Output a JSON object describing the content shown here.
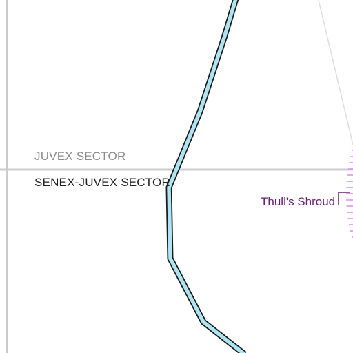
{
  "map": {
    "sectors": [
      {
        "id": "juvex",
        "label": "JUVEX SECTOR",
        "color": "#8c8c8c"
      },
      {
        "id": "senex-juvex",
        "label": "SENEX-JUVEX SECTOR",
        "color": "#222222"
      }
    ],
    "features": [
      {
        "id": "thulls-shroud",
        "label": "Thull's Shroud",
        "color": "#6a1b7a"
      }
    ],
    "colors": {
      "background": "#ffffff",
      "grid_line": "#cccccc",
      "route_fill": "#aee4f2",
      "route_outline": "#1a1a1a",
      "nebula": "#d9a6ee",
      "faint_line": "#dddddd"
    }
  }
}
